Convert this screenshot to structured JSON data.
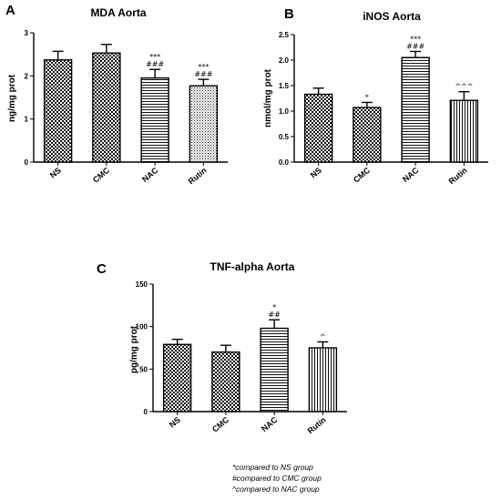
{
  "chart_data": [
    {
      "panel": "A",
      "type": "bar",
      "title": "MDA Aorta",
      "ylabel": "ng/mg prot",
      "xlabel": "",
      "categories": [
        "NS",
        "CMC",
        "NAC",
        "Rutin"
      ],
      "values": [
        2.37,
        2.53,
        1.95,
        1.77
      ],
      "errors": [
        0.2,
        0.2,
        0.2,
        0.15
      ],
      "annotations": [
        [],
        [],
        [
          "***",
          "###"
        ],
        [
          "***",
          "###"
        ]
      ],
      "patterns": [
        "checker",
        "checker",
        "hlines",
        "dots"
      ],
      "ylim": [
        0,
        3
      ],
      "yticks": [
        0,
        1,
        2,
        3
      ],
      "grid": false
    },
    {
      "panel": "B",
      "type": "bar",
      "title": "iNOS Aorta",
      "ylabel": "nmol/mg prot",
      "xlabel": "",
      "categories": [
        "NS",
        "CMC",
        "NAC",
        "Rutin"
      ],
      "values": [
        1.33,
        1.07,
        2.05,
        1.21
      ],
      "errors": [
        0.12,
        0.1,
        0.12,
        0.17
      ],
      "annotations": [
        [],
        [
          "*"
        ],
        [
          "***",
          "###"
        ],
        [
          "^^^"
        ]
      ],
      "patterns": [
        "checker",
        "checker",
        "hlines",
        "vlines"
      ],
      "ylim": [
        0,
        2.5
      ],
      "yticks": [
        0.0,
        0.5,
        1.0,
        1.5,
        2.0,
        2.5
      ],
      "grid": false
    },
    {
      "panel": "C",
      "type": "bar",
      "title": "TNF-alpha Aorta",
      "ylabel": "pg/mg prot",
      "xlabel": "",
      "categories": [
        "NS",
        "CMC",
        "NAC",
        "Rutin"
      ],
      "values": [
        79,
        70,
        98,
        75
      ],
      "errors": [
        6,
        8,
        10,
        7
      ],
      "annotations": [
        [],
        [],
        [
          "*",
          "##"
        ],
        [
          "^"
        ]
      ],
      "patterns": [
        "checker",
        "checker",
        "hlines",
        "vlines"
      ],
      "ylim": [
        0,
        150
      ],
      "yticks": [
        0,
        50,
        100,
        150
      ],
      "grid": false
    }
  ],
  "footnotes": [
    "*compared to NS group",
    "#compared to CMC group",
    "^compared to NAC group"
  ]
}
